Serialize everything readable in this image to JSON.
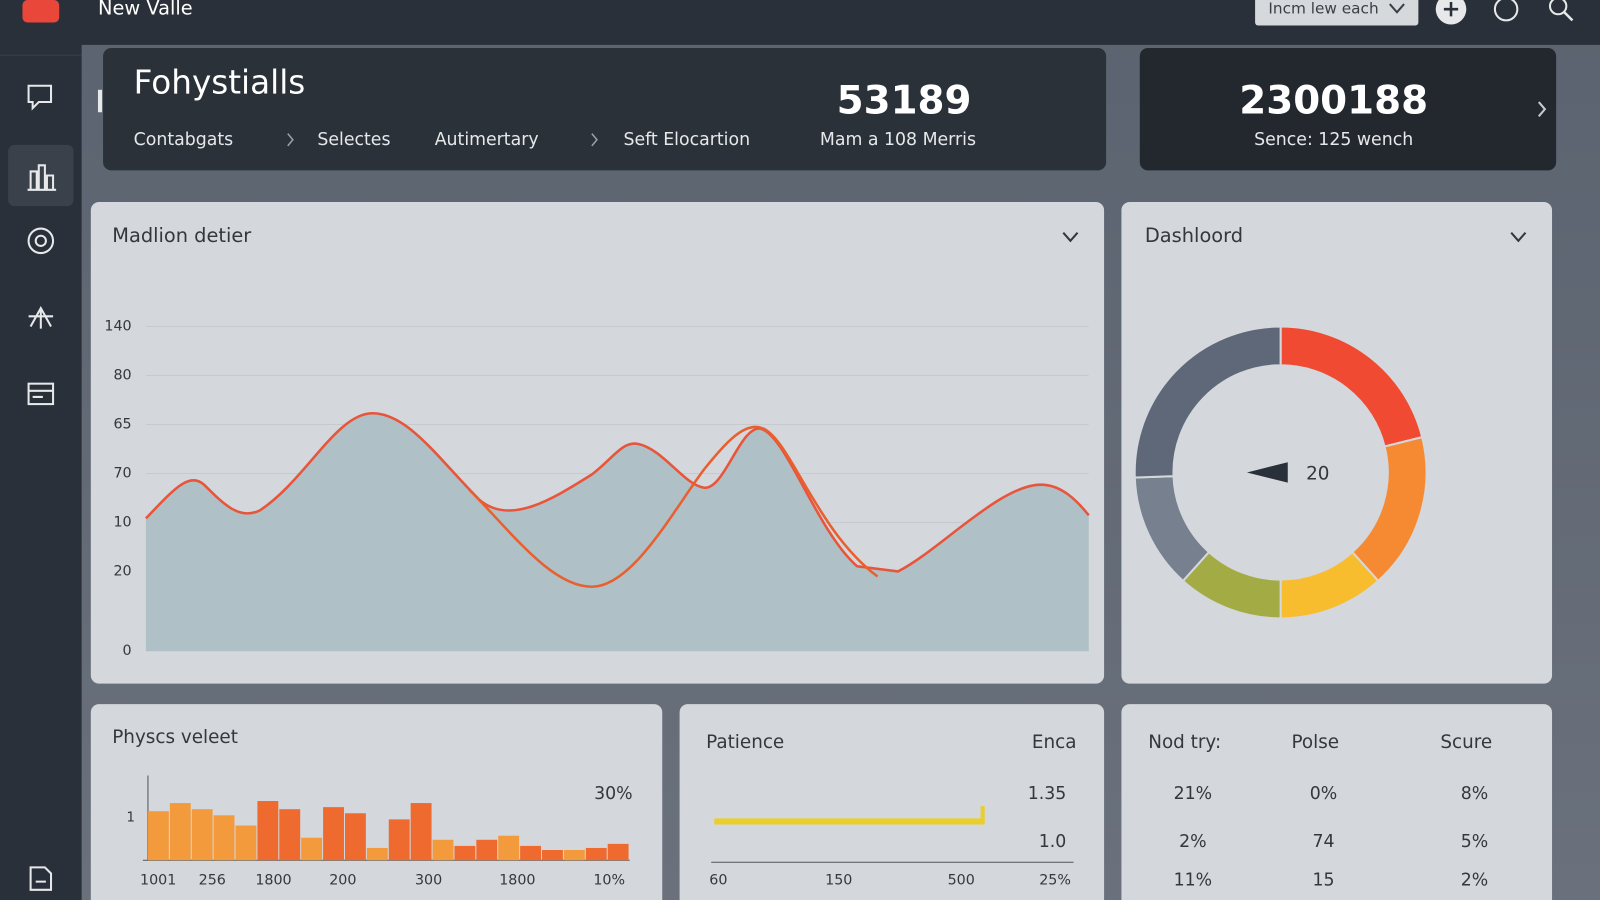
{
  "app": {
    "title": "New Valle",
    "dropdown": "Incm lew each"
  },
  "header": {
    "title": "Fohystialls",
    "breadcrumbs": [
      "Contabgats",
      "Selectes",
      "Autimertary",
      "Seft Elocartion"
    ],
    "stat_1": {
      "value": "53189",
      "label": "Mam a 108 Merris"
    },
    "stat_2": {
      "value": "2300188",
      "label": "Sence: 125 wench"
    }
  },
  "main_panel": {
    "title": "Madlion detier",
    "axis_labels": [
      "140",
      "80",
      "65",
      "70",
      "10",
      "20",
      "0"
    ]
  },
  "donut_panel": {
    "title": "Dashloord",
    "center_label": "20"
  },
  "histogram_panel": {
    "title": "Physcs veleet",
    "corner_label": "30%",
    "axis_label": "1",
    "x_labels": [
      "1001",
      "256",
      "1800",
      "200",
      "300",
      "1800",
      "10%"
    ]
  },
  "progress_panel": {
    "title": "Patience",
    "corner_label": "Enca",
    "labels": [
      "1.35",
      "1.0"
    ],
    "x_labels": [
      "60",
      "150",
      "500",
      "25%"
    ]
  },
  "table_panel": {
    "headers": [
      "Nod try:",
      "Polse",
      "Scure"
    ],
    "rows": [
      [
        "21%",
        "0%",
        "8%"
      ],
      [
        "2%",
        "74",
        "5%"
      ],
      [
        "11%",
        "15",
        "2%"
      ]
    ]
  }
}
